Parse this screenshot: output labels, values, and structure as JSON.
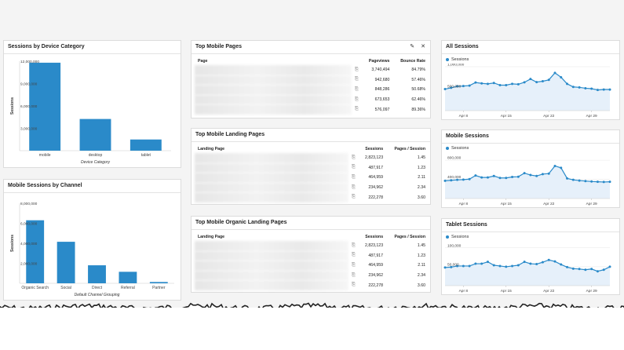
{
  "colors": {
    "accent": "#2a8ac9",
    "fill": "#e6f0fa"
  },
  "device_panel": {
    "title": "Sessions by Device Category"
  },
  "channel_panel": {
    "title": "Mobile Sessions by Channel"
  },
  "top_mobile_pages": {
    "title": "Top Mobile Pages",
    "edit_icon": "pencil-icon",
    "close_icon": "close-icon",
    "columns": [
      "Page",
      "Pageviews",
      "Bounce Rate"
    ],
    "rows": [
      {
        "pageviews": "3,740,494",
        "bounce": "84.79%"
      },
      {
        "pageviews": "942,680",
        "bounce": "57.46%"
      },
      {
        "pageviews": "848,286",
        "bounce": "50.68%"
      },
      {
        "pageviews": "673,653",
        "bounce": "62.46%"
      },
      {
        "pageviews": "576,097",
        "bounce": "89.36%"
      }
    ]
  },
  "top_mobile_landing": {
    "title": "Top Mobile Landing Pages",
    "columns": [
      "Landing Page",
      "Sessions",
      "Pages / Session"
    ],
    "rows": [
      {
        "sessions": "2,823,123",
        "pps": "1.45"
      },
      {
        "sessions": "487,917",
        "pps": "1.23"
      },
      {
        "sessions": "464,959",
        "pps": "2.11"
      },
      {
        "sessions": "234,962",
        "pps": "2.34"
      },
      {
        "sessions": "222,278",
        "pps": "3.60"
      }
    ]
  },
  "top_organic_landing": {
    "title": "Top Mobile Organic Landing Pages",
    "columns": [
      "Landing Page",
      "Sessions",
      "Pages / Session"
    ],
    "rows": [
      {
        "sessions": "2,823,123",
        "pps": "1.45"
      },
      {
        "sessions": "487,917",
        "pps": "1.23"
      },
      {
        "sessions": "464,959",
        "pps": "2.11"
      },
      {
        "sessions": "234,962",
        "pps": "2.34"
      },
      {
        "sessions": "222,278",
        "pps": "3.60"
      }
    ]
  },
  "all_sessions_panel": {
    "title": "All Sessions"
  },
  "mobile_sessions_panel": {
    "title": "Mobile Sessions"
  },
  "tablet_sessions_panel": {
    "title": "Tablet Sessions"
  },
  "chart_data": [
    {
      "type": "bar",
      "title": "Sessions by Device Category",
      "xlabel": "Device Category",
      "ylabel": "Sessions",
      "categories": [
        "mobile",
        "desktop",
        "tablet"
      ],
      "values": [
        11800000,
        4250000,
        1500000
      ],
      "yticks": [
        3000000,
        6000000,
        9000000,
        12000000
      ],
      "ytick_labels": [
        "3,000,000",
        "6,000,000",
        "9,000,000",
        "12,000,000"
      ],
      "ylim": [
        0,
        12000000
      ]
    },
    {
      "type": "bar",
      "title": "Mobile Sessions by Channel",
      "xlabel": "Default Channel Grouping",
      "ylabel": "Sessions",
      "categories": [
        "Organic Search",
        "Social",
        "Direct",
        "Referral",
        "Partner"
      ],
      "values": [
        6300000,
        4150000,
        1800000,
        1150000,
        130000
      ],
      "yticks": [
        2000000,
        4000000,
        6000000,
        8000000
      ],
      "ytick_labels": [
        "2,000,000",
        "4,000,000",
        "6,000,000",
        "8,000,000"
      ],
      "ylim": [
        0,
        8000000
      ]
    },
    {
      "type": "area",
      "title": "All Sessions",
      "legend": "Sessions",
      "ylim": [
        0,
        1000000
      ],
      "yticks": [
        500000,
        1000000
      ],
      "ytick_labels": [
        "500,000",
        "1,000,000"
      ],
      "xticks": [
        3,
        10,
        17,
        24
      ],
      "xtick_labels": [
        "Apr 8",
        "Apr 15",
        "Apr 22",
        "Apr 29"
      ],
      "x": [
        0,
        1,
        2,
        3,
        4,
        5,
        6,
        7,
        8,
        9,
        10,
        11,
        12,
        13,
        14,
        15,
        16,
        17,
        18,
        19,
        20,
        21,
        22,
        23,
        24,
        25,
        26,
        27
      ],
      "values": [
        490000,
        520000,
        555000,
        560000,
        570000,
        640000,
        620000,
        610000,
        630000,
        580000,
        580000,
        610000,
        600000,
        645000,
        720000,
        650000,
        670000,
        700000,
        860000,
        760000,
        610000,
        540000,
        530000,
        510000,
        500000,
        470000,
        480000,
        480000
      ]
    },
    {
      "type": "area",
      "title": "Mobile Sessions",
      "legend": "Sessions",
      "ylim": [
        0,
        900000
      ],
      "yticks": [
        400000,
        800000
      ],
      "ytick_labels": [
        "400,000",
        "800,000"
      ],
      "xticks": [
        3,
        10,
        17,
        24
      ],
      "xtick_labels": [
        "Apr 8",
        "Apr 15",
        "Apr 22",
        "Apr 29"
      ],
      "x": [
        0,
        1,
        2,
        3,
        4,
        5,
        6,
        7,
        8,
        9,
        10,
        11,
        12,
        13,
        14,
        15,
        16,
        17,
        18,
        19,
        20,
        21,
        22,
        23,
        24,
        25,
        26,
        27
      ],
      "values": [
        370000,
        380000,
        390000,
        395000,
        405000,
        480000,
        440000,
        440000,
        470000,
        430000,
        430000,
        450000,
        455000,
        530000,
        490000,
        470000,
        510000,
        520000,
        680000,
        640000,
        420000,
        390000,
        375000,
        365000,
        355000,
        350000,
        345000,
        350000
      ]
    },
    {
      "type": "area",
      "title": "Tablet Sessions",
      "legend": "Sessions",
      "ylim": [
        0,
        110000
      ],
      "yticks": [
        50000,
        100000
      ],
      "ytick_labels": [
        "50,000",
        "100,000"
      ],
      "xticks": [
        3,
        10,
        17,
        24
      ],
      "xtick_labels": [
        "Apr 8",
        "Apr 15",
        "Apr 22",
        "Apr 29"
      ],
      "x": [
        0,
        1,
        2,
        3,
        4,
        5,
        6,
        7,
        8,
        9,
        10,
        11,
        12,
        13,
        14,
        15,
        16,
        17,
        18,
        19,
        20,
        21,
        22,
        23,
        24,
        25,
        26,
        27
      ],
      "values": [
        48000,
        49000,
        52000,
        52000,
        52000,
        58000,
        58000,
        63000,
        54000,
        52000,
        50000,
        52000,
        54000,
        63000,
        58000,
        57000,
        62000,
        68000,
        64000,
        56000,
        49000,
        45000,
        44000,
        42000,
        44000,
        38000,
        42000,
        50000
      ]
    }
  ]
}
